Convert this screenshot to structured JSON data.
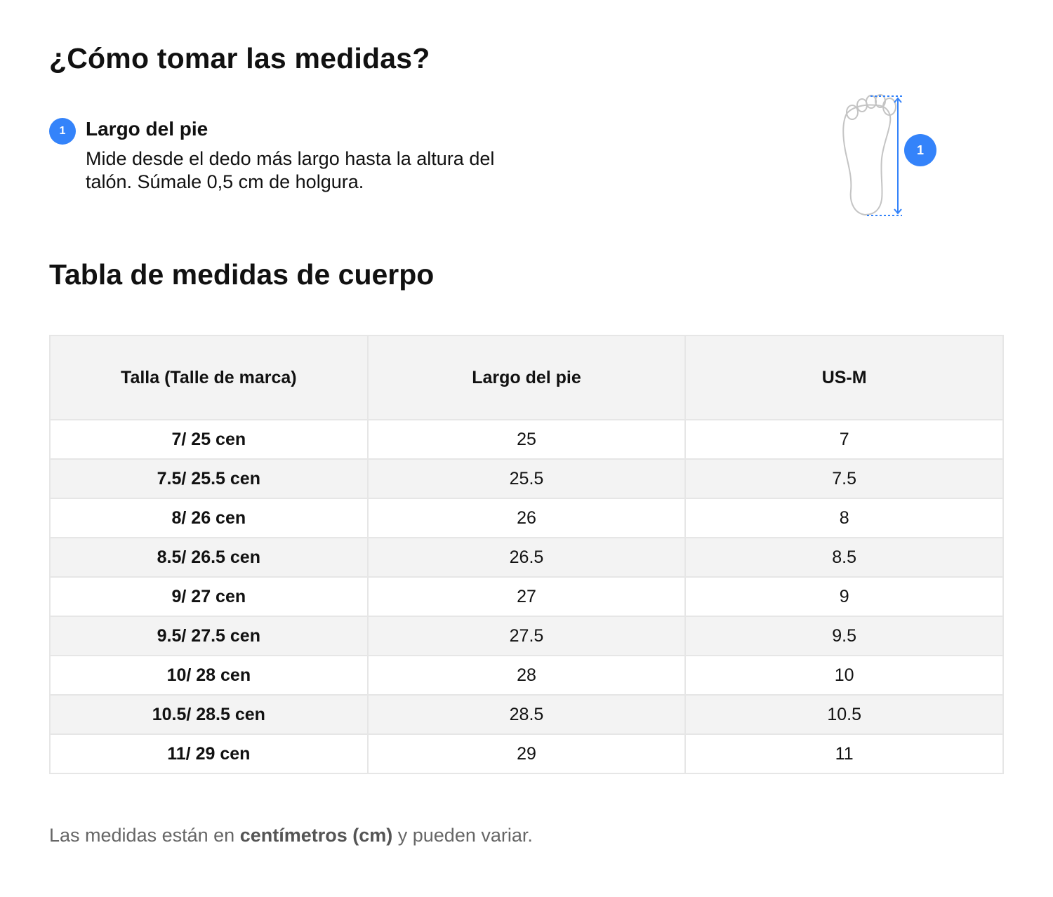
{
  "heading": "¿Cómo tomar las medidas?",
  "step": {
    "number": "1",
    "title": "Largo del pie",
    "description": "Mide desde el dedo más largo hasta la altura del talón. Súmale 0,5 cm de holgura."
  },
  "illustration": {
    "icon": "foot-measure-icon",
    "badge": "1",
    "accent_color": "#3483fa"
  },
  "table_title": "Tabla de medidas de cuerpo",
  "table": {
    "headers": [
      "Talla (Talle de marca)",
      "Largo del pie",
      "US-M"
    ],
    "rows": [
      [
        "7/ 25 cen",
        "25",
        "7"
      ],
      [
        "7.5/ 25.5 cen",
        "25.5",
        "7.5"
      ],
      [
        "8/ 26 cen",
        "26",
        "8"
      ],
      [
        "8.5/ 26.5 cen",
        "26.5",
        "8.5"
      ],
      [
        "9/ 27 cen",
        "27",
        "9"
      ],
      [
        "9.5/ 27.5 cen",
        "27.5",
        "9.5"
      ],
      [
        "10/ 28 cen",
        "28",
        "10"
      ],
      [
        "10.5/ 28.5 cen",
        "28.5",
        "10.5"
      ],
      [
        "11/ 29 cen",
        "29",
        "11"
      ]
    ]
  },
  "footnote": {
    "before": "Las medidas están en ",
    "emphasis": "centímetros (cm)",
    "after": " y pueden variar."
  }
}
